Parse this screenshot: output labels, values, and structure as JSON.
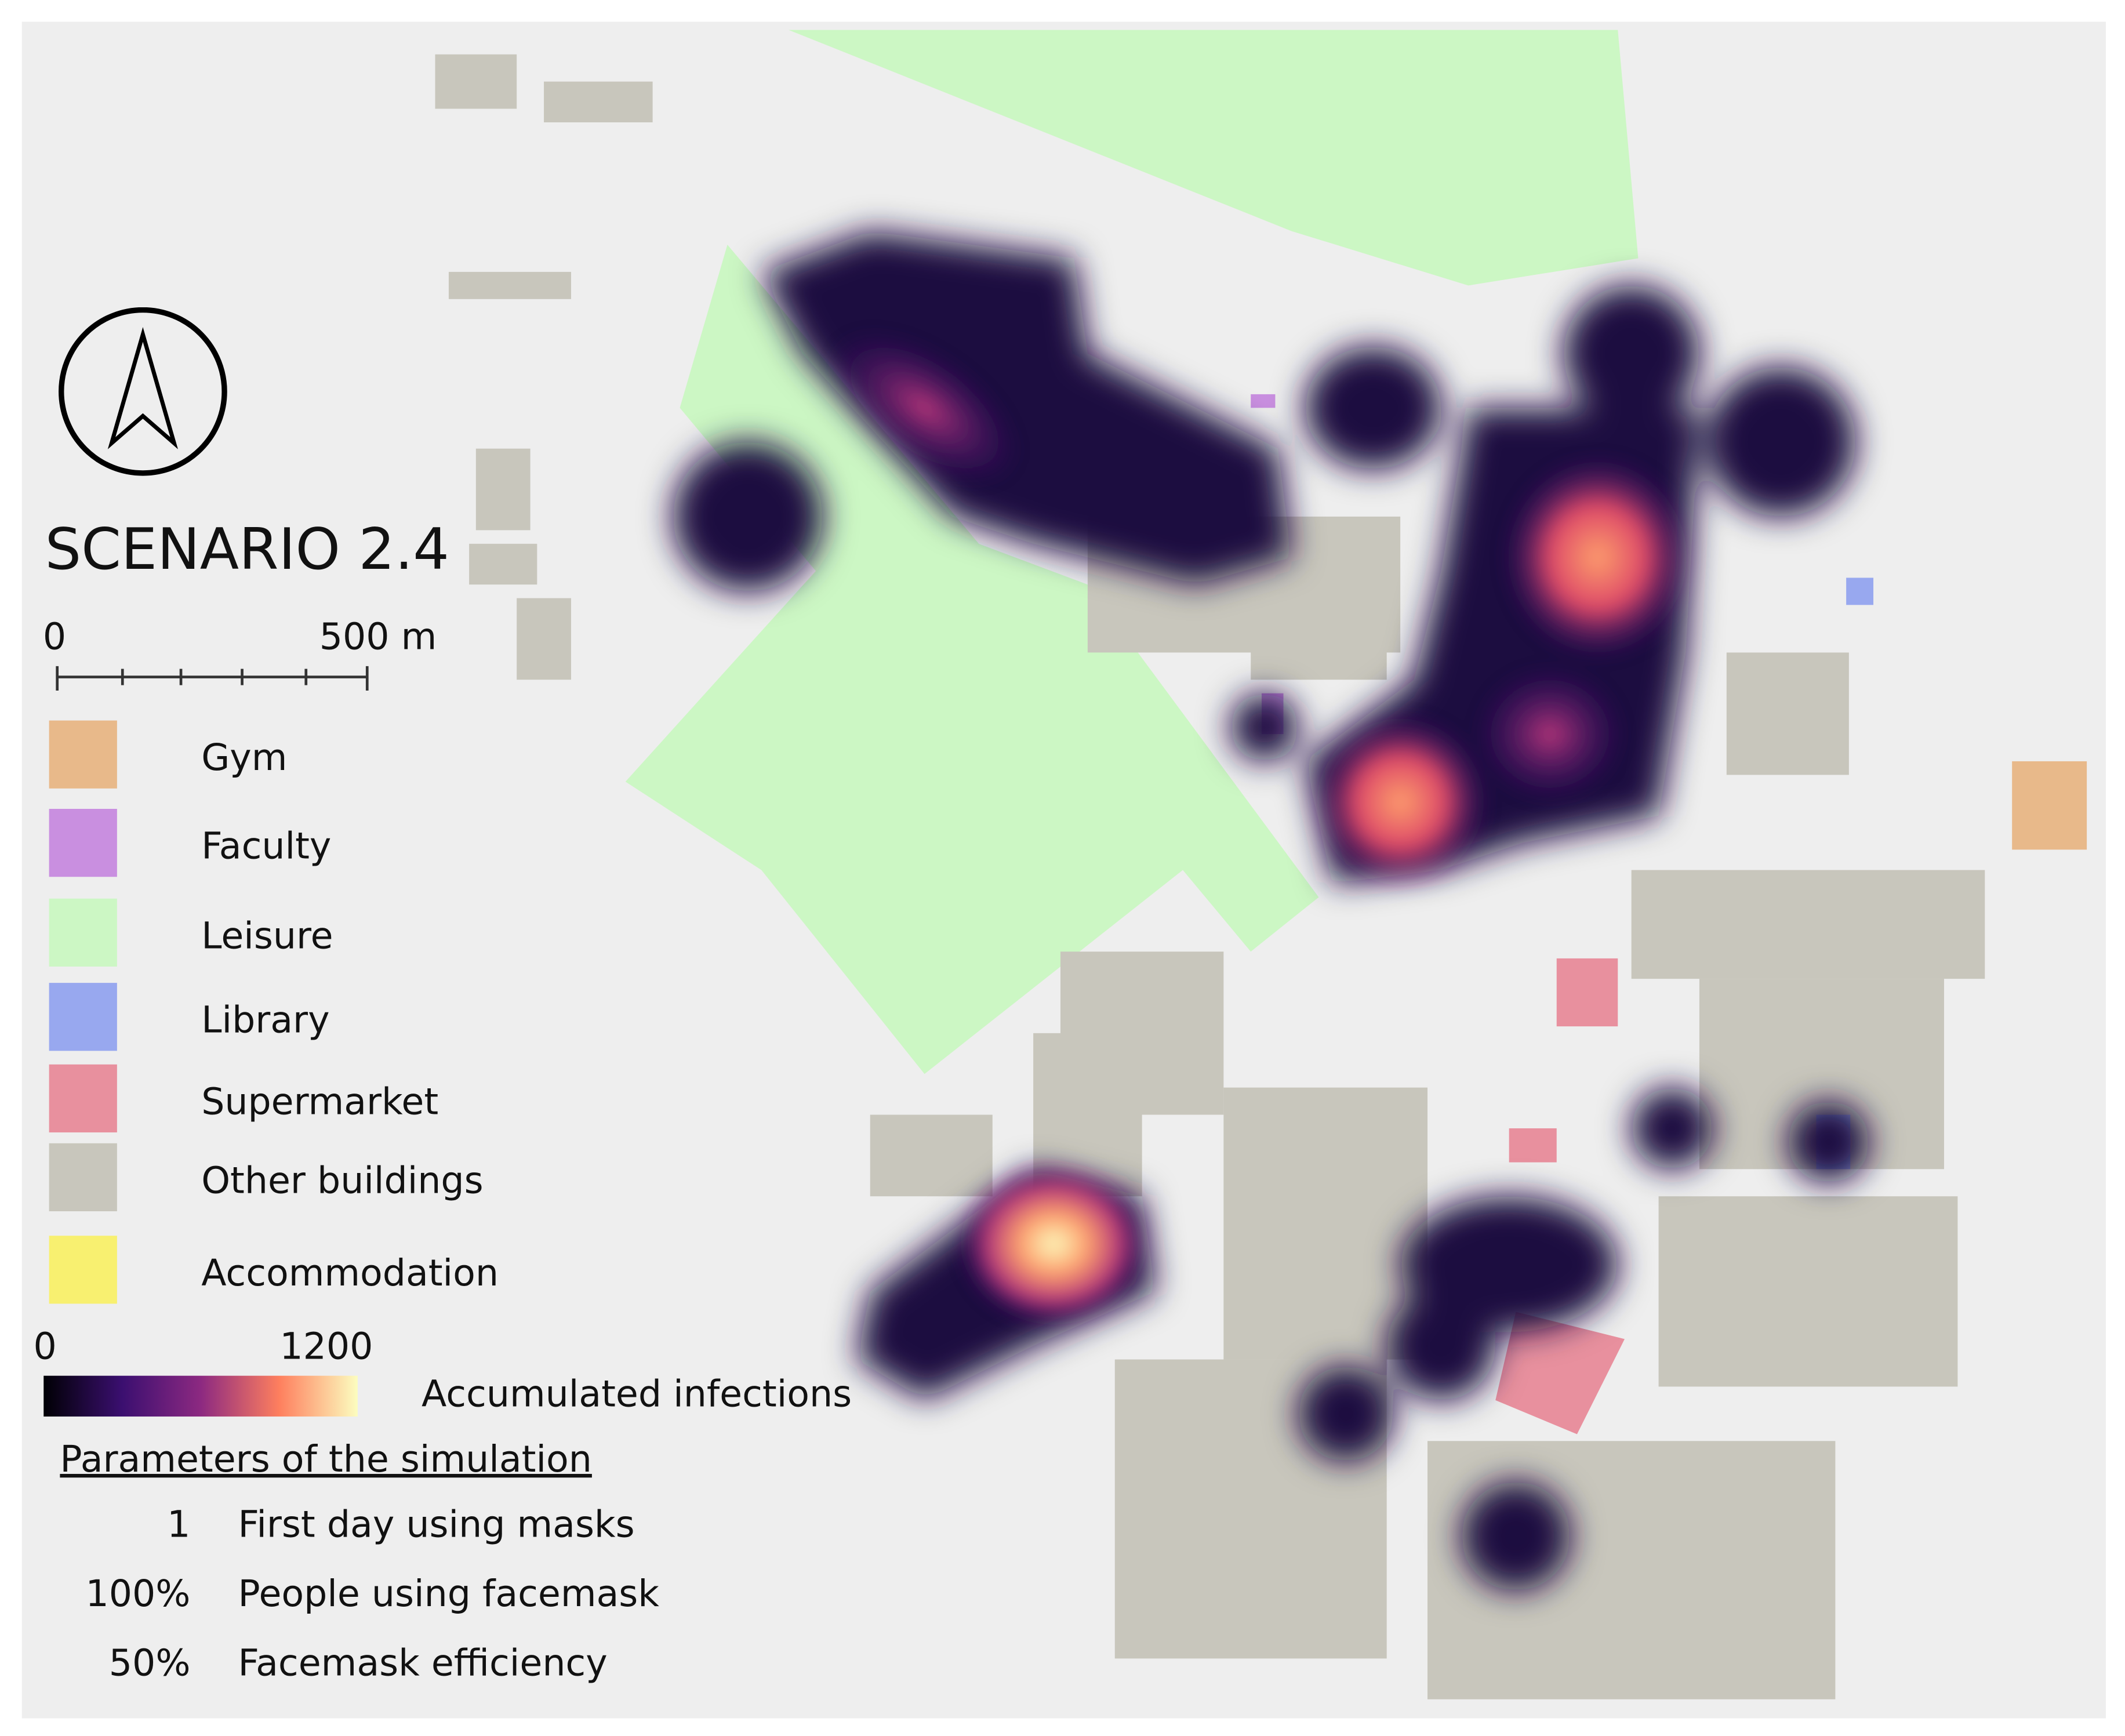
{
  "title": "SCENARIO 2.4",
  "scale_bar": {
    "start": "0",
    "end": "500 m"
  },
  "legend": {
    "items": [
      {
        "label": "Gym",
        "color": "#e8b98a"
      },
      {
        "label": "Faculty",
        "color": "#c98fe0"
      },
      {
        "label": "Leisure",
        "color": "#ccf7c4"
      },
      {
        "label": "Library",
        "color": "#98a8ef"
      },
      {
        "label": "Supermarket",
        "color": "#e8909e"
      },
      {
        "label": "Other buildings",
        "color": "#c8c6bc"
      },
      {
        "label": "Accommodation",
        "color": "#f8f070"
      }
    ]
  },
  "colorbar": {
    "min": 0,
    "max": 1200,
    "label": "Accumulated infections"
  },
  "parameters": {
    "heading": "Parameters of the simulation",
    "rows": [
      [
        "1",
        "First day using masks"
      ],
      [
        "100%",
        "People using facemask"
      ],
      [
        "50%",
        "Facemask efficiency"
      ]
    ]
  }
}
